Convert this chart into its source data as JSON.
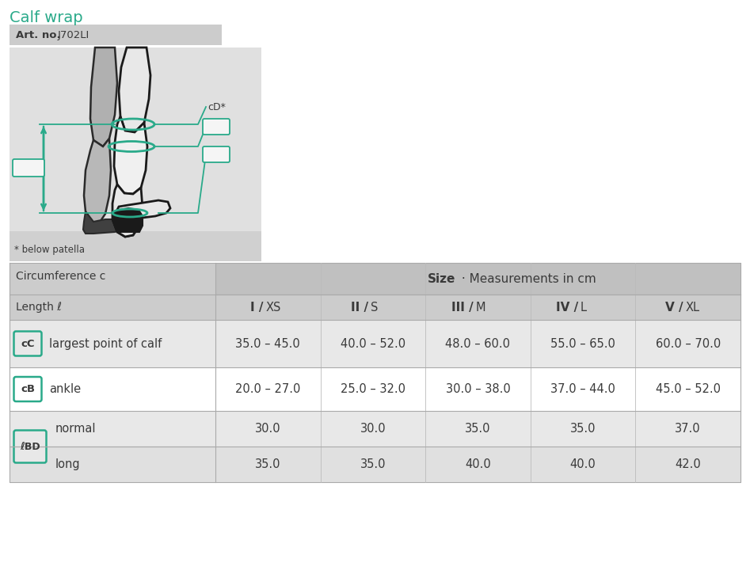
{
  "title": "Calf wrap",
  "art_no_label": "Art. no.",
  "art_no_value": "J702LI",
  "title_color": "#2aaa8a",
  "teal_color": "#2aaa8a",
  "bg_color": "#ffffff",
  "table_header_bg": "#cccccc",
  "table_data_bg": "#e8e8e8",
  "table_white_row_bg": "#f0f0f0",
  "col_header_row2_bold": [
    "I",
    "II",
    "III",
    "IV",
    "V"
  ],
  "col_header_row2_normal": [
    "XS",
    "S",
    "M",
    "L",
    "XL"
  ],
  "left_header_row1": "Circumference c",
  "left_header_row2": "Length ℓ",
  "rows": [
    {
      "label_box": "cC",
      "label_text": "largest point of calf",
      "values": [
        "35.0 – 45.0",
        "40.0 – 52.0",
        "48.0 – 60.0",
        "55.0 – 65.0",
        "60.0 – 70.0"
      ],
      "type": "single",
      "bg": "#e8e8e8"
    },
    {
      "label_box": "cB",
      "label_text": "ankle",
      "values": [
        "20.0 – 27.0",
        "25.0 – 32.0",
        "30.0 – 38.0",
        "37.0 – 44.0",
        "45.0 – 52.0"
      ],
      "type": "single",
      "bg": "#ffffff"
    },
    {
      "label_box": "ℓBD",
      "label_text_top": "normal",
      "label_text_bottom": "long",
      "values_top": [
        "30.0",
        "30.0",
        "35.0",
        "35.0",
        "37.0"
      ],
      "values_bottom": [
        "35.0",
        "35.0",
        "40.0",
        "40.0",
        "42.0"
      ],
      "type": "double"
    }
  ]
}
